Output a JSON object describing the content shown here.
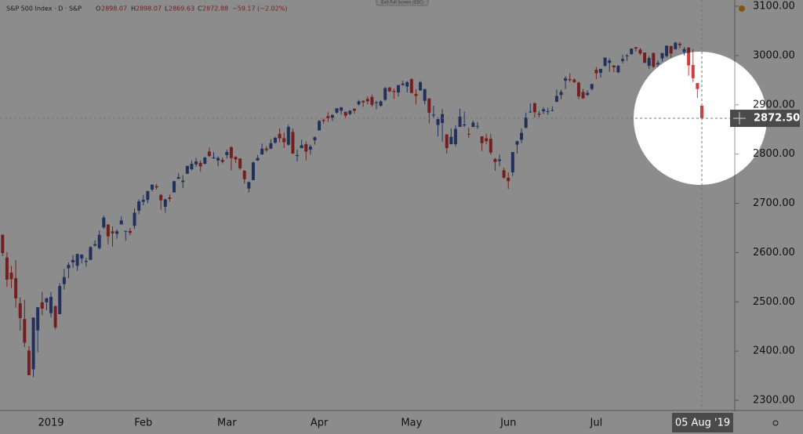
{
  "header": {
    "symbol": "S&P 500 Index · D · S&P",
    "o_label": "O",
    "h_label": "H",
    "l_label": "L",
    "c_label": "C",
    "change": "−59.17 (−2.02%)",
    "exit_fullscreen": "Exit Full Screen (ESC)"
  },
  "chart_data": {
    "type": "candlestick",
    "categories": [
      null,
      null,
      null,
      null,
      null,
      null,
      null,
      null,
      null,
      null,
      null,
      "2019",
      null,
      null,
      null,
      null,
      null,
      null,
      null,
      null,
      null,
      null,
      null,
      null,
      null,
      null,
      null,
      null,
      null,
      null,
      null,
      null,
      "Feb",
      null,
      null,
      null,
      null,
      null,
      null,
      null,
      null,
      null,
      null,
      null,
      null,
      null,
      null,
      null,
      null,
      null,
      null,
      "Mar",
      null,
      null,
      null,
      null,
      null,
      null,
      null,
      null,
      null,
      null,
      null,
      null,
      null,
      null,
      null,
      null,
      null,
      null,
      null,
      null,
      "Apr",
      null,
      null,
      null,
      null,
      null,
      null,
      null,
      null,
      null,
      null,
      null,
      null,
      null,
      null,
      null,
      null,
      null,
      null,
      null,
      null,
      "May",
      null,
      null,
      null,
      null,
      null,
      null,
      null,
      null,
      null,
      null,
      null,
      null,
      null,
      null,
      null,
      null,
      null,
      null,
      null,
      null,
      null,
      "Jun",
      null,
      null,
      null,
      null,
      null,
      null,
      null,
      null,
      null,
      null,
      null,
      null,
      null,
      null,
      null,
      null,
      null,
      null,
      null,
      "Jul",
      null,
      null,
      null,
      null,
      null,
      null,
      null,
      null,
      null,
      null,
      null,
      null,
      null,
      null,
      null,
      null,
      null,
      null,
      null,
      null,
      null,
      null,
      null,
      "05 Aug '19"
    ],
    "candles": [
      [
        2636,
        2637,
        2593,
        2599
      ],
      [
        2590,
        2601,
        2530,
        2545
      ],
      [
        2559,
        2573,
        2528,
        2546
      ],
      [
        2548,
        2585,
        2488,
        2507
      ],
      [
        2497,
        2509,
        2441,
        2467
      ],
      [
        2465,
        2504,
        2408,
        2417
      ],
      [
        2401,
        2410,
        2351,
        2351
      ],
      [
        2363,
        2468,
        2347,
        2468
      ],
      [
        2442,
        2489,
        2398,
        2489
      ],
      [
        2499,
        2520,
        2473,
        2486
      ],
      [
        2499,
        2509,
        2483,
        2507
      ],
      [
        2477,
        2520,
        2468,
        2510
      ],
      [
        2491,
        2493,
        2444,
        2448
      ],
      [
        2475,
        2538,
        2475,
        2532
      ],
      [
        2536,
        2567,
        2525,
        2550
      ],
      [
        2568,
        2580,
        2548,
        2575
      ],
      [
        2580,
        2595,
        2569,
        2585
      ],
      [
        2573,
        2598,
        2563,
        2597
      ],
      [
        2588,
        2596,
        2578,
        2596
      ],
      [
        2581,
        2589,
        2571,
        2583
      ],
      [
        2585,
        2613,
        2585,
        2611
      ],
      [
        2614,
        2625,
        2612,
        2617
      ],
      [
        2609,
        2645,
        2606,
        2636
      ],
      [
        2651,
        2675,
        2648,
        2671
      ],
      [
        2657,
        2657,
        2617,
        2633
      ],
      [
        2643,
        2653,
        2612,
        2639
      ],
      [
        2638,
        2647,
        2628,
        2643
      ],
      [
        2657,
        2673,
        2657,
        2665
      ],
      [
        2644,
        2644,
        2624,
        2644
      ],
      [
        2644,
        2650,
        2635,
        2640
      ],
      [
        2654,
        2690,
        2648,
        2681
      ],
      [
        2685,
        2708,
        2678,
        2704
      ],
      [
        2703,
        2717,
        2696,
        2707
      ],
      [
        2707,
        2725,
        2700,
        2725
      ],
      [
        2728,
        2738,
        2724,
        2738
      ],
      [
        2735,
        2739,
        2728,
        2732
      ],
      [
        2717,
        2719,
        2687,
        2706
      ],
      [
        2693,
        2709,
        2681,
        2708
      ],
      [
        2712,
        2718,
        2703,
        2709
      ],
      [
        2722,
        2744,
        2722,
        2745
      ],
      [
        2750,
        2761,
        2749,
        2753
      ],
      [
        2743,
        2757,
        2731,
        2746
      ],
      [
        2760,
        2776,
        2760,
        2776
      ],
      [
        2769,
        2787,
        2767,
        2780
      ],
      [
        2779,
        2792,
        2774,
        2785
      ],
      [
        2782,
        2787,
        2764,
        2775
      ],
      [
        2780,
        2794,
        2780,
        2793
      ],
      [
        2805,
        2813,
        2794,
        2796
      ],
      [
        2793,
        2804,
        2790,
        2793
      ],
      [
        2787,
        2795,
        2775,
        2792
      ],
      [
        2788,
        2793,
        2781,
        2784
      ],
      [
        2798,
        2809,
        2791,
        2804
      ],
      [
        2814,
        2816,
        2767,
        2792
      ],
      [
        2794,
        2796,
        2782,
        2789
      ],
      [
        2791,
        2791,
        2768,
        2771
      ],
      [
        2766,
        2768,
        2740,
        2749
      ],
      [
        2730,
        2744,
        2722,
        2743
      ],
      [
        2747,
        2784,
        2747,
        2783
      ],
      [
        2787,
        2798,
        2786,
        2792
      ],
      [
        2799,
        2821,
        2799,
        2811
      ],
      [
        2811,
        2816,
        2804,
        2808
      ],
      [
        2811,
        2830,
        2810,
        2822
      ],
      [
        2823,
        2835,
        2821,
        2833
      ],
      [
        2841,
        2852,
        2824,
        2832
      ],
      [
        2832,
        2844,
        2812,
        2824
      ],
      [
        2819,
        2860,
        2817,
        2855
      ],
      [
        2845,
        2852,
        2800,
        2801
      ],
      [
        2796,
        2809,
        2785,
        2798
      ],
      [
        2812,
        2829,
        2812,
        2818
      ],
      [
        2820,
        2826,
        2787,
        2805
      ],
      [
        2809,
        2819,
        2799,
        2815
      ],
      [
        2828,
        2836,
        2819,
        2834
      ],
      [
        2848,
        2869,
        2848,
        2867
      ],
      [
        2869,
        2872,
        2862,
        2867
      ],
      [
        2877,
        2885,
        2865,
        2873
      ],
      [
        2874,
        2881,
        2867,
        2879
      ],
      [
        2884,
        2893,
        2882,
        2893
      ],
      [
        2888,
        2895,
        2880,
        2895
      ],
      [
        2886,
        2886,
        2873,
        2878
      ],
      [
        2881,
        2889,
        2879,
        2888
      ],
      [
        2892,
        2893,
        2882,
        2888
      ],
      [
        2901,
        2910,
        2898,
        2907
      ],
      [
        2908,
        2909,
        2896,
        2905
      ],
      [
        2912,
        2917,
        2901,
        2907
      ],
      [
        2916,
        2921,
        2896,
        2900
      ],
      [
        2904,
        2908,
        2891,
        2905
      ],
      [
        2898,
        2909,
        2896,
        2907
      ],
      [
        2910,
        2936,
        2908,
        2934
      ],
      [
        2935,
        2936,
        2926,
        2927
      ],
      [
        2928,
        2933,
        2912,
        2926
      ],
      [
        2925,
        2940,
        2917,
        2940
      ],
      [
        2940,
        2949,
        2939,
        2943
      ],
      [
        2937,
        2948,
        2925,
        2946
      ],
      [
        2952,
        2954,
        2923,
        2924
      ],
      [
        2922,
        2932,
        2901,
        2918
      ],
      [
        2929,
        2948,
        2929,
        2946
      ],
      [
        2908,
        2932,
        2901,
        2932
      ],
      [
        2913,
        2913,
        2862,
        2884
      ],
      [
        2880,
        2898,
        2874,
        2880
      ],
      [
        2859,
        2875,
        2836,
        2871
      ],
      [
        2863,
        2891,
        2825,
        2881
      ],
      [
        2840,
        2840,
        2801,
        2812
      ],
      [
        2820,
        2852,
        2820,
        2835
      ],
      [
        2820,
        2858,
        2815,
        2851
      ],
      [
        2855,
        2892,
        2855,
        2876
      ],
      [
        2858,
        2886,
        2855,
        2860
      ],
      [
        2841,
        2853,
        2832,
        2840
      ],
      [
        2855,
        2868,
        2855,
        2864
      ],
      [
        2856,
        2865,
        2851,
        2857
      ],
      [
        2836,
        2836,
        2806,
        2822
      ],
      [
        2832,
        2841,
        2820,
        2826
      ],
      [
        2831,
        2841,
        2799,
        2803
      ],
      [
        2790,
        2792,
        2766,
        2784
      ],
      [
        2786,
        2799,
        2776,
        2789
      ],
      [
        2767,
        2772,
        2750,
        2752
      ],
      [
        2752,
        2763,
        2729,
        2745
      ],
      [
        2763,
        2804,
        2755,
        2804
      ],
      [
        2819,
        2827,
        2801,
        2826
      ],
      [
        2829,
        2852,
        2822,
        2843
      ],
      [
        2853,
        2884,
        2853,
        2874
      ],
      [
        2886,
        2903,
        2884,
        2886
      ],
      [
        2903,
        2905,
        2874,
        2885
      ],
      [
        2882,
        2888,
        2874,
        2880
      ],
      [
        2887,
        2895,
        2881,
        2891
      ],
      [
        2886,
        2894,
        2880,
        2887
      ],
      [
        2889,
        2897,
        2887,
        2889
      ],
      [
        2906,
        2931,
        2905,
        2918
      ],
      [
        2920,
        2931,
        2911,
        2926
      ],
      [
        2949,
        2958,
        2932,
        2954
      ],
      [
        2952,
        2964,
        2946,
        2950
      ],
      [
        2951,
        2954,
        2944,
        2946
      ],
      [
        2945,
        2947,
        2911,
        2917
      ],
      [
        2926,
        2932,
        2912,
        2913
      ],
      [
        2920,
        2929,
        2918,
        2924
      ],
      [
        2932,
        2943,
        2929,
        2942
      ],
      [
        2971,
        2977,
        2952,
        2964
      ],
      [
        2965,
        2973,
        2955,
        2973
      ],
      [
        2979,
        2995,
        2977,
        2996
      ],
      [
        2985,
        2994,
        2967,
        2990
      ],
      [
        2980,
        2980,
        2966,
        2976
      ],
      [
        2966,
        2981,
        2964,
        2979
      ],
      [
        2989,
        3002,
        2984,
        2993
      ],
      [
        2999,
        3003,
        2989,
        3000
      ],
      [
        3003,
        3014,
        3001,
        3014
      ],
      [
        3017,
        3017,
        3008,
        3014
      ],
      [
        3012,
        3015,
        3001,
        3004
      ],
      [
        3006,
        3006,
        2985,
        2985
      ],
      [
        2979,
        2999,
        2973,
        2995
      ],
      [
        3005,
        3006,
        2975,
        2977
      ],
      [
        2982,
        2990,
        2977,
        2985
      ],
      [
        2994,
        3005,
        2988,
        3005
      ],
      [
        2999,
        3020,
        2996,
        3020
      ],
      [
        3019,
        3020,
        2996,
        3004
      ],
      [
        3013,
        3028,
        3012,
        3026
      ],
      [
        3024,
        3027,
        3015,
        3021
      ],
      [
        3007,
        3017,
        3000,
        3013
      ],
      [
        3016,
        3017,
        2959,
        2980
      ],
      [
        2981,
        3013,
        2946,
        2954
      ],
      [
        2944,
        2945,
        2914,
        2932
      ],
      [
        2898.07,
        2898.07,
        2869.63,
        2872.88
      ]
    ],
    "up_color": "#3d5aa6",
    "down_color": "#d43a3a",
    "ylim": [
      2300,
      3100
    ],
    "yticks": [
      {
        "value": 2300,
        "label": "2300.00"
      },
      {
        "value": 2400,
        "label": "2400.00"
      },
      {
        "value": 2500,
        "label": "2500.00"
      },
      {
        "value": 2600,
        "label": "2600.00"
      },
      {
        "value": 2700,
        "label": "2700.00"
      },
      {
        "value": 2800,
        "label": "2800.00"
      },
      {
        "value": 2900,
        "label": "2900.00"
      },
      {
        "value": 3000,
        "label": "3000.00"
      },
      {
        "value": 3100,
        "label": "3100.00"
      }
    ],
    "grid": false,
    "crosshair": {
      "value": 2872.5,
      "label": "2872.50"
    }
  }
}
